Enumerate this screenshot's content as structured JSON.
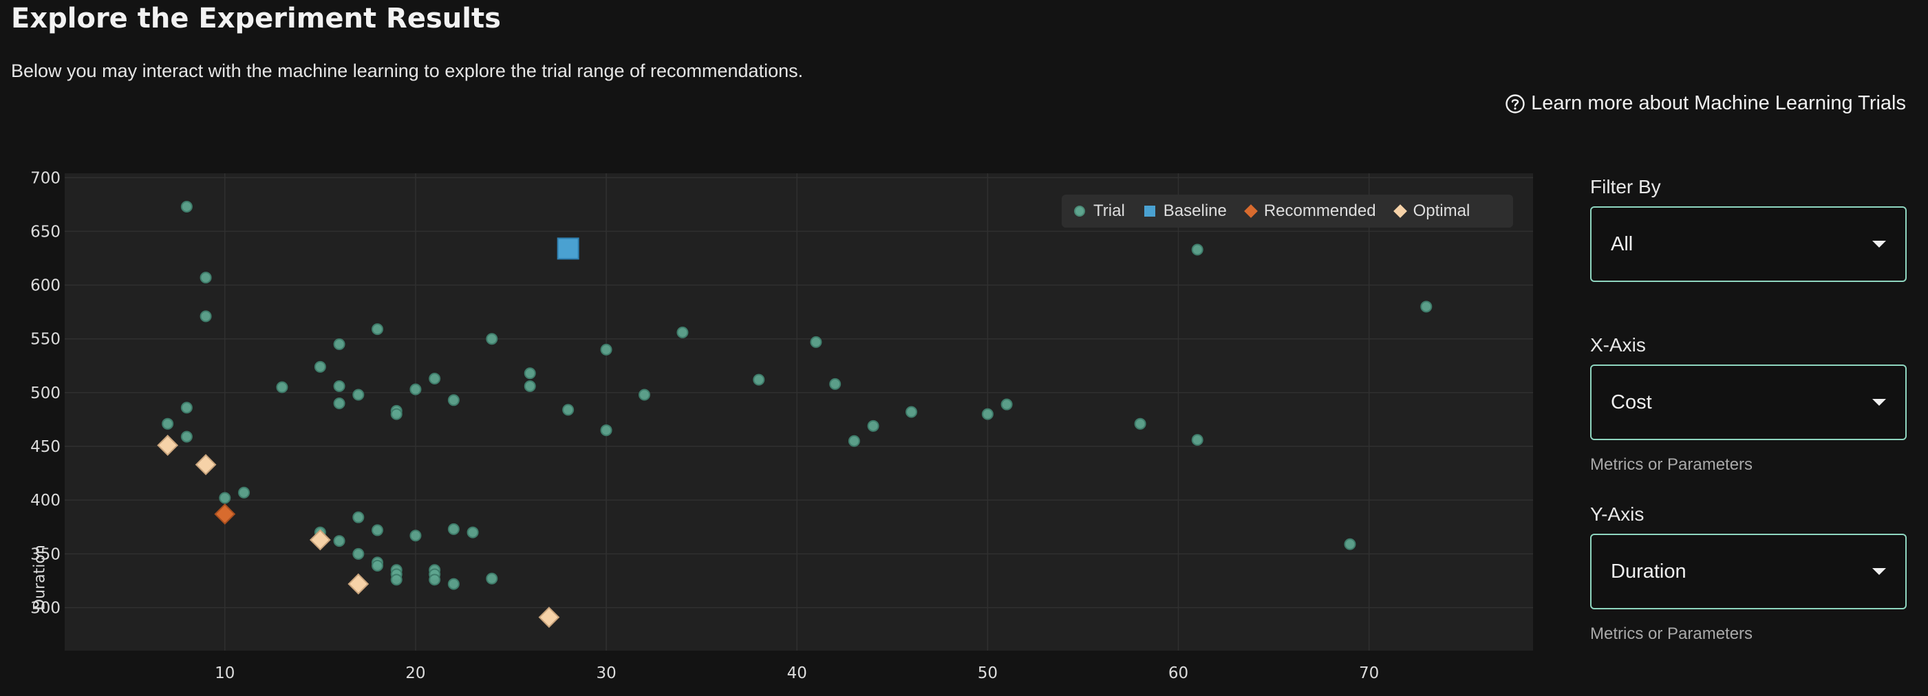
{
  "header": {
    "title": "Explore the Experiment Results",
    "subtitle": "Below you may interact with the machine learning to explore the trial range of recommendations.",
    "learn_more": "Learn more about Machine Learning Trials"
  },
  "controls": {
    "filter": {
      "label": "Filter By",
      "value": "All"
    },
    "x_axis": {
      "label": "X-Axis",
      "value": "Cost",
      "helper": "Metrics or Parameters"
    },
    "y_axis": {
      "label": "Y-Axis",
      "value": "Duration",
      "helper": "Metrics or Parameters"
    }
  },
  "colors": {
    "trial": "#5fa58f",
    "baseline": "#4aa1d1",
    "recommended": "#d86b2e",
    "optimal": "#f6d2a8",
    "accent_border": "#8fd6c0"
  },
  "chart_data": {
    "type": "scatter",
    "xlabel": "",
    "ylabel": "Duration",
    "x_ticks": [
      10,
      20,
      30,
      40,
      50,
      60,
      70
    ],
    "y_ticks": [
      300,
      350,
      400,
      450,
      500,
      550,
      600,
      650,
      700
    ],
    "xlim": [
      1.6,
      78.6
    ],
    "ylim": [
      260,
      704
    ],
    "grid": true,
    "legend_position": "top-right",
    "series": [
      {
        "name": "Trial",
        "marker": "circle",
        "points": [
          [
            8,
            673
          ],
          [
            9,
            607
          ],
          [
            9,
            571
          ],
          [
            8,
            486
          ],
          [
            7,
            471
          ],
          [
            8,
            459
          ],
          [
            10,
            402
          ],
          [
            11,
            407
          ],
          [
            13,
            505
          ],
          [
            15,
            524
          ],
          [
            16,
            545
          ],
          [
            16,
            506
          ],
          [
            16,
            490
          ],
          [
            17,
            498
          ],
          [
            18,
            559
          ],
          [
            19,
            483
          ],
          [
            19,
            480
          ],
          [
            20,
            503
          ],
          [
            21,
            513
          ],
          [
            22,
            493
          ],
          [
            24,
            550
          ],
          [
            26,
            518
          ],
          [
            26,
            506
          ],
          [
            28,
            484
          ],
          [
            30,
            540
          ],
          [
            30,
            465
          ],
          [
            32,
            498
          ],
          [
            34,
            556
          ],
          [
            38,
            512
          ],
          [
            41,
            547
          ],
          [
            42,
            508
          ],
          [
            43,
            455
          ],
          [
            44,
            469
          ],
          [
            46,
            482
          ],
          [
            50,
            480
          ],
          [
            51,
            489
          ],
          [
            58,
            471
          ],
          [
            61,
            633
          ],
          [
            61,
            456
          ],
          [
            73,
            580
          ],
          [
            69,
            359
          ],
          [
            15,
            370
          ],
          [
            16,
            362
          ],
          [
            17,
            384
          ],
          [
            17,
            350
          ],
          [
            18,
            372
          ],
          [
            18,
            342
          ],
          [
            18,
            339
          ],
          [
            19,
            335
          ],
          [
            19,
            331
          ],
          [
            19,
            326
          ],
          [
            20,
            367
          ],
          [
            21,
            335
          ],
          [
            21,
            331
          ],
          [
            21,
            326
          ],
          [
            22,
            373
          ],
          [
            22,
            322
          ],
          [
            23,
            370
          ],
          [
            24,
            327
          ]
        ]
      },
      {
        "name": "Baseline",
        "marker": "square",
        "points": [
          [
            28,
            634
          ]
        ]
      },
      {
        "name": "Recommended",
        "marker": "diamond",
        "points": [
          [
            10,
            387
          ]
        ]
      },
      {
        "name": "Optimal",
        "marker": "diamond",
        "points": [
          [
            7,
            451
          ],
          [
            9,
            433
          ],
          [
            15,
            363
          ],
          [
            17,
            322
          ],
          [
            27,
            291
          ]
        ]
      }
    ]
  }
}
